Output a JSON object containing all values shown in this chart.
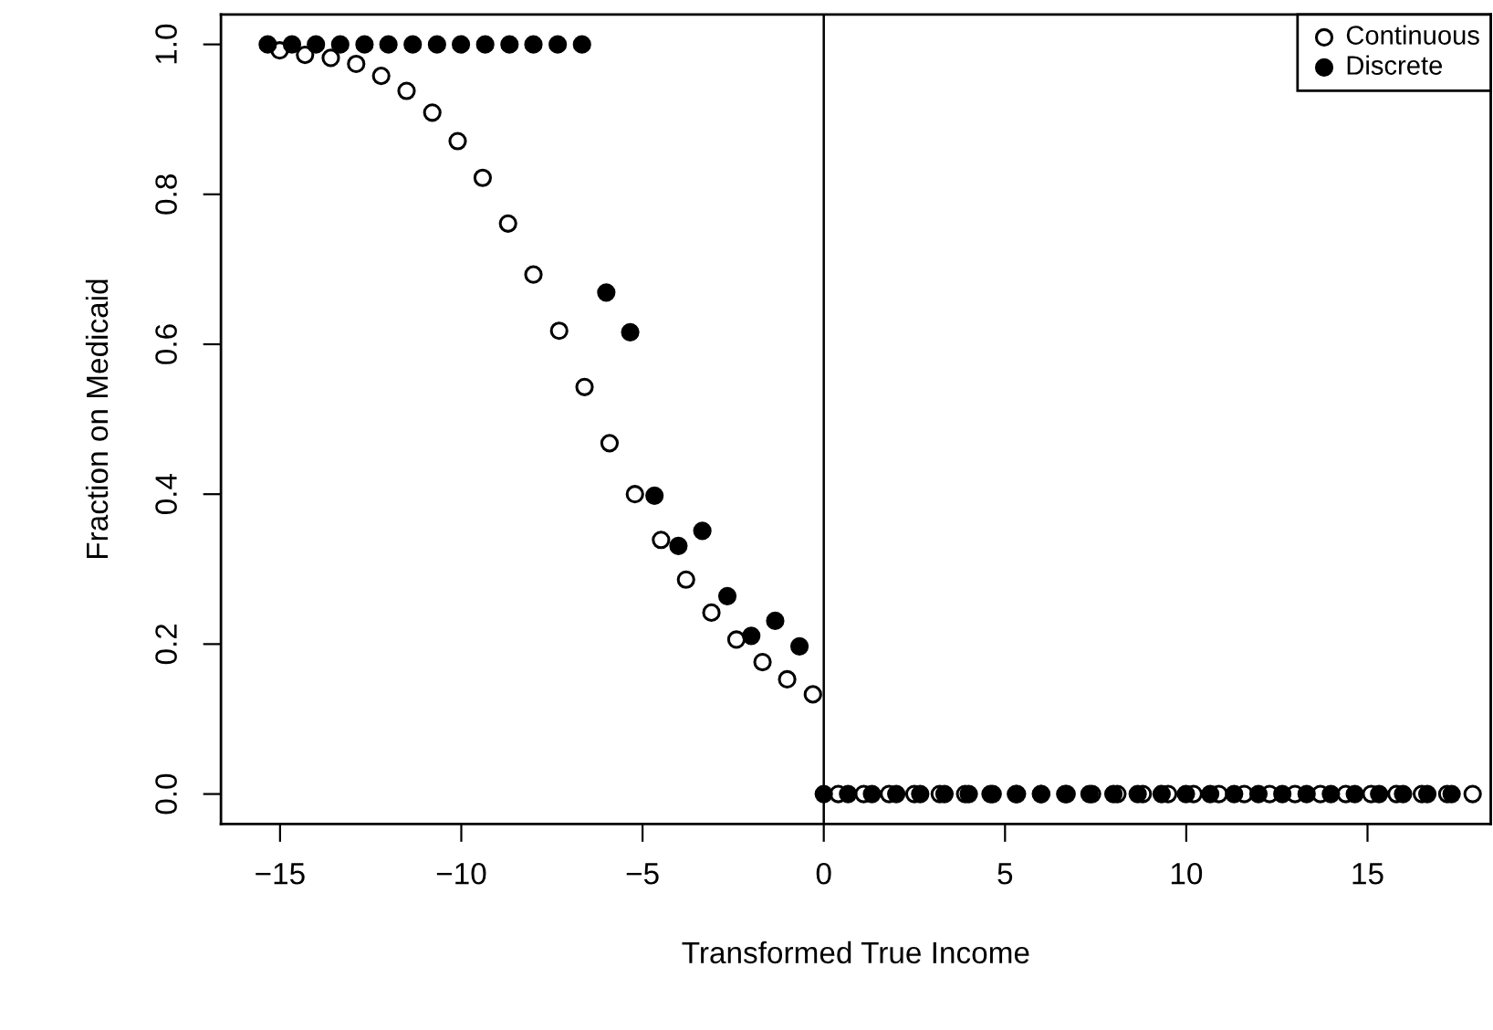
{
  "chart_data": {
    "type": "scatter",
    "xlabel": "Transformed True Income",
    "ylabel": "Fraction on Medicaid",
    "xlim": [
      -16.63,
      18.4
    ],
    "ylim": [
      -0.04,
      1.04
    ],
    "xticks": [
      {
        "value": -15,
        "label": "−15"
      },
      {
        "value": -10,
        "label": "−10"
      },
      {
        "value": -5,
        "label": "−5"
      },
      0,
      5,
      10,
      15
    ],
    "yticks": [
      {
        "value": 0,
        "label": "0.0"
      },
      {
        "value": 0.2,
        "label": "0.2"
      },
      {
        "value": 0.4,
        "label": "0.4"
      },
      {
        "value": 0.6,
        "label": "0.6"
      },
      {
        "value": 0.8,
        "label": "0.8"
      },
      {
        "value": 1,
        "label": "1.0"
      }
    ],
    "grid": false,
    "legend": "top right",
    "marker": "circle",
    "ref_lines": [
      {
        "axis": "x",
        "value": 0,
        "color": "#000000"
      }
    ],
    "series": [
      {
        "name": "Continuous",
        "color": "#ffffff",
        "x": [
          -15.01,
          -14.31,
          -13.6,
          -12.9,
          -12.21,
          -11.51,
          -10.8,
          -10.1,
          -9.41,
          -8.71,
          -8.01,
          -7.3,
          -6.6,
          -5.91,
          -5.21,
          -4.49,
          -3.8,
          -3.1,
          -2.41,
          -1.69,
          -1.01,
          -0.3,
          0.4,
          1.1,
          1.8,
          2.5,
          3.2,
          3.9,
          4.6,
          5.3,
          6.0,
          6.7,
          7.4,
          8.1,
          8.8,
          9.5,
          10.2,
          10.9,
          11.6,
          12.3,
          13.0,
          13.7,
          14.4,
          15.1,
          15.8,
          16.5,
          17.2,
          17.9
        ],
        "values": [
          0.992,
          0.986,
          0.982,
          0.974,
          0.958,
          0.938,
          0.909,
          0.871,
          0.822,
          0.761,
          0.693,
          0.618,
          0.543,
          0.468,
          0.4,
          0.339,
          0.286,
          0.242,
          0.206,
          0.176,
          0.153,
          0.133,
          0,
          0,
          0,
          0,
          0,
          0,
          0,
          0,
          0,
          0,
          0,
          0,
          0,
          0,
          0,
          0,
          0,
          0,
          0,
          0,
          0,
          0,
          0,
          0,
          0,
          0
        ]
      },
      {
        "name": "Discrete",
        "color": "#000000",
        "x": [
          -15.34,
          -14.67,
          -14.01,
          -13.34,
          -12.67,
          -12.01,
          -11.34,
          -10.67,
          -10.01,
          -9.34,
          -8.67,
          -8.01,
          -7.34,
          -6.67,
          -6.0,
          -5.34,
          -4.67,
          -4.01,
          -3.35,
          -2.66,
          -2.0,
          -1.34,
          -0.67,
          0,
          0.67,
          1.33,
          2.0,
          2.66,
          3.33,
          4.0,
          4.66,
          5.33,
          5.99,
          6.66,
          7.33,
          7.99,
          8.66,
          9.32,
          9.99,
          10.66,
          11.32,
          11.99,
          12.65,
          13.32,
          13.99,
          14.65,
          15.32,
          15.98,
          16.65,
          17.32
        ],
        "values": [
          1,
          1,
          1,
          1,
          1,
          1,
          1,
          1,
          1,
          1,
          1,
          1,
          1,
          1,
          0.669,
          0.616,
          0.398,
          0.331,
          0.351,
          0.264,
          0.211,
          0.231,
          0.197,
          0,
          0,
          0,
          0,
          0,
          0,
          0,
          0,
          0,
          0,
          0,
          0,
          0,
          0,
          0,
          0,
          0,
          0,
          0,
          0,
          0,
          0,
          0,
          0,
          0,
          0,
          0
        ]
      }
    ]
  }
}
